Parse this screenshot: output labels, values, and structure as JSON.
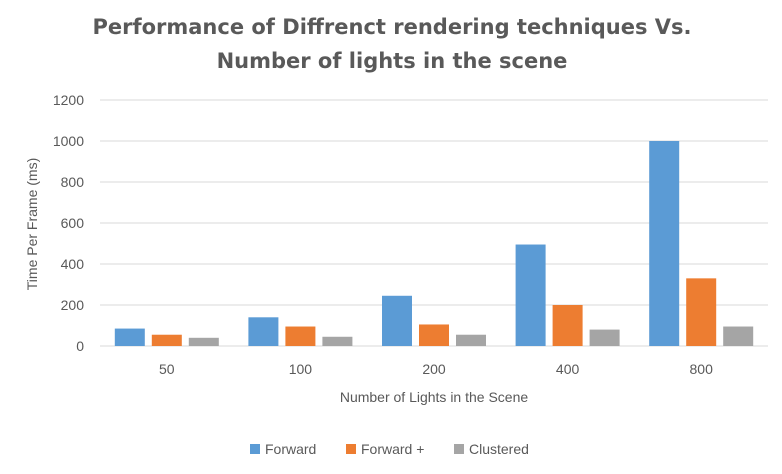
{
  "chart_data": {
    "type": "bar",
    "title_lines": [
      "Performance of Diffrenct rendering techniques Vs.",
      "Number of lights in the scene"
    ],
    "xlabel": "Number of Lights in the Scene",
    "ylabel": "Time Per Frame (ms)",
    "categories": [
      "50",
      "100",
      "200",
      "400",
      "800"
    ],
    "ylim": [
      0,
      1200
    ],
    "yticks": [
      0,
      200,
      400,
      600,
      800,
      1000,
      1200
    ],
    "grid": true,
    "legend_position": "bottom",
    "series": [
      {
        "name": "Forward",
        "values": [
          85,
          140,
          245,
          495,
          1000
        ],
        "color": "#5B9BD5"
      },
      {
        "name": "Forward +",
        "values": [
          55,
          95,
          105,
          200,
          330
        ],
        "color": "#ED7D31"
      },
      {
        "name": "Clustered",
        "values": [
          40,
          45,
          55,
          80,
          95
        ],
        "color": "#A5A5A5"
      }
    ]
  }
}
